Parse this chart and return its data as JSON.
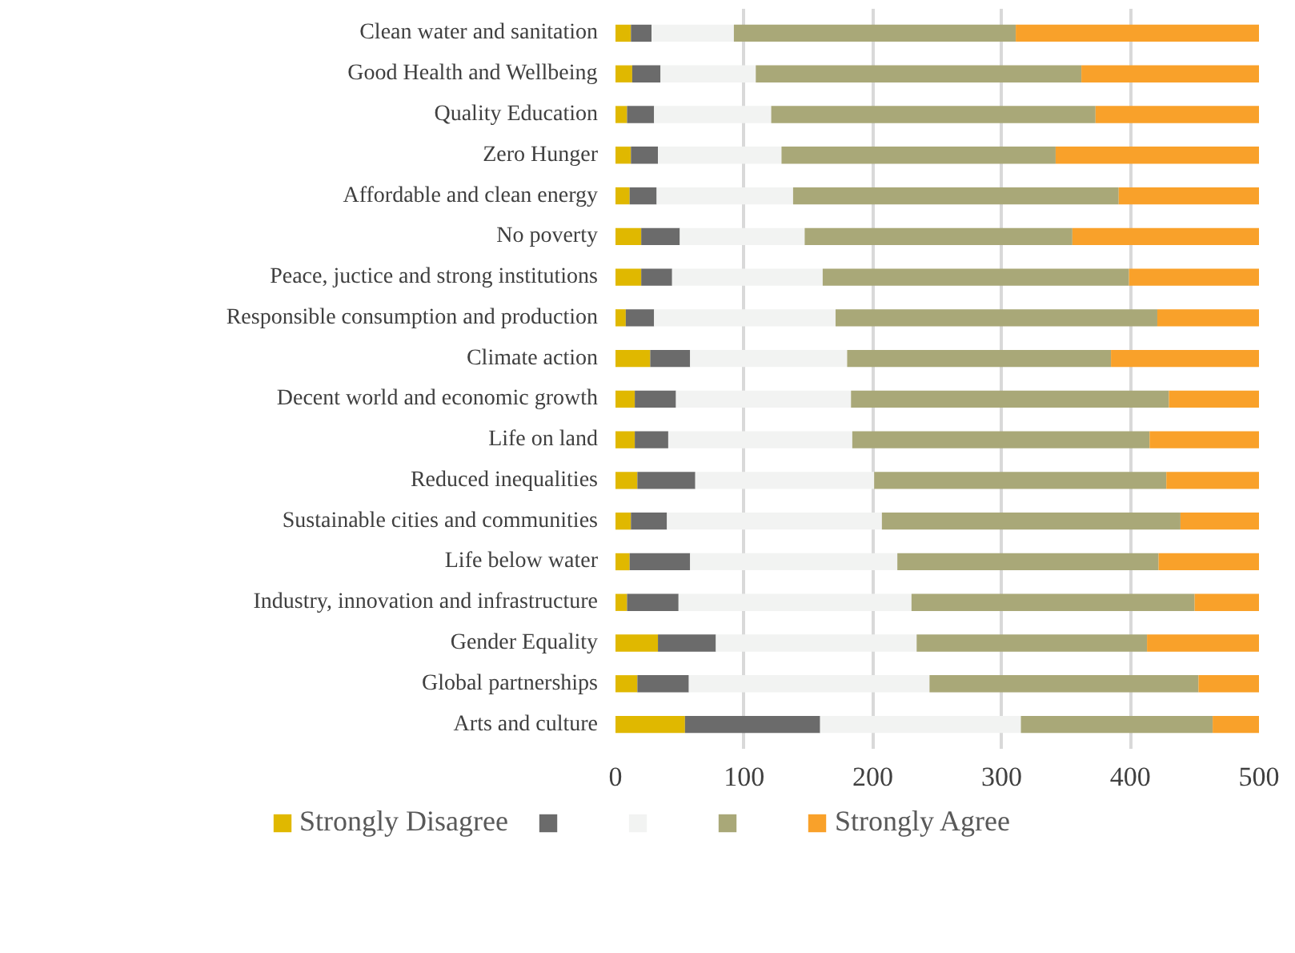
{
  "chart_data": {
    "type": "bar",
    "orientation": "horizontal",
    "stacked": true,
    "categories": [
      "Clean water and sanitation",
      "Good Health and Wellbeing",
      "Quality Education",
      "Zero Hunger",
      "Affordable and clean energy",
      "No poverty",
      "Peace, juctice and strong institutions",
      "Responsible consumption and production",
      "Climate action",
      "Decent world and economic growth",
      "Life on land",
      "Reduced inequalities",
      "Sustainable cities and communities",
      "Life below water",
      "Industry, innovation and infrastructure",
      "Gender Equality",
      "Global partnerships",
      "Arts and culture"
    ],
    "series": [
      {
        "name": "Strongly Disagree",
        "color": "#e0b800",
        "values": [
          12,
          13,
          9,
          12,
          11,
          20,
          20,
          8,
          27,
          15,
          15,
          17,
          12,
          11,
          9,
          33,
          17,
          54
        ]
      },
      {
        "color": "#6b6b6b",
        "values": [
          16,
          22,
          21,
          21,
          21,
          30,
          24,
          22,
          31,
          32,
          26,
          45,
          28,
          47,
          40,
          45,
          40,
          105
        ]
      },
      {
        "color": "#f2f3f2",
        "values": [
          64,
          74,
          91,
          96,
          106,
          97,
          117,
          141,
          122,
          136,
          143,
          139,
          167,
          161,
          181,
          156,
          187,
          156
        ]
      },
      {
        "color": "#a9a878",
        "values": [
          219,
          253,
          252,
          213,
          253,
          208,
          238,
          250,
          205,
          247,
          231,
          227,
          232,
          203,
          220,
          179,
          209,
          149
        ]
      },
      {
        "name": "Strongly Agree",
        "color": "#f9a12a",
        "values": [
          189,
          138,
          127,
          158,
          109,
          145,
          101,
          79,
          115,
          70,
          85,
          72,
          61,
          78,
          50,
          87,
          47,
          36
        ]
      }
    ],
    "xlim": [
      0,
      500
    ],
    "xticks": [
      0,
      100,
      200,
      300,
      400,
      500
    ],
    "grid": "x",
    "legend": "bottom"
  }
}
